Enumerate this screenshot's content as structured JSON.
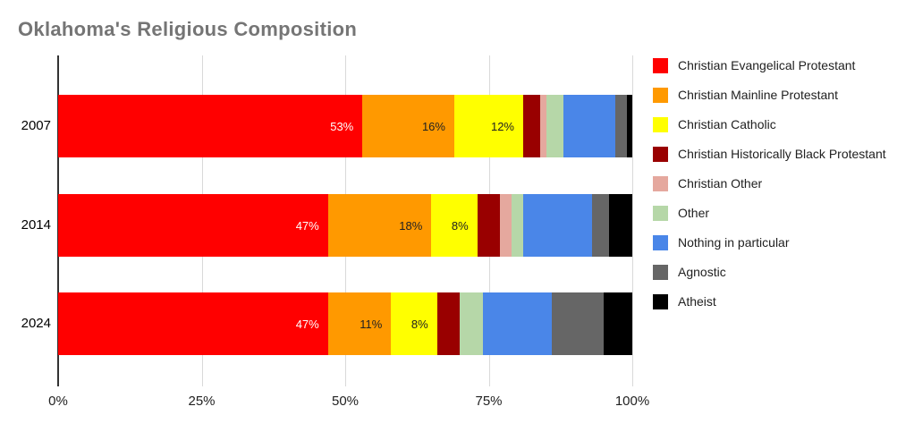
{
  "chart_data": {
    "type": "bar",
    "orientation": "horizontal",
    "stacked": true,
    "title": "Oklahoma's Religious Composition",
    "categories": [
      "2007",
      "2014",
      "2024"
    ],
    "series": [
      {
        "name": "Christian Evangelical Protestant",
        "color": "#FF0000",
        "label_color": "#FFFFFF",
        "values": [
          53,
          47,
          47
        ]
      },
      {
        "name": "Christian Mainline Protestant",
        "color": "#FF9900",
        "label_color": "#212121",
        "values": [
          16,
          18,
          11
        ]
      },
      {
        "name": "Christian Catholic",
        "color": "#FFFF00",
        "label_color": "#212121",
        "values": [
          12,
          8,
          8
        ]
      },
      {
        "name": "Christian Historically Black Protestant",
        "color": "#990000",
        "label_color": "#FFFFFF",
        "values": [
          3,
          4,
          4
        ]
      },
      {
        "name": "Christian Other",
        "color": "#E5A89E",
        "label_color": "#212121",
        "values": [
          1,
          2,
          0
        ]
      },
      {
        "name": "Other",
        "color": "#B6D7A8",
        "label_color": "#212121",
        "values": [
          3,
          2,
          4
        ]
      },
      {
        "name": "Nothing in particular",
        "color": "#4A86E8",
        "label_color": "#FFFFFF",
        "values": [
          9,
          12,
          12
        ]
      },
      {
        "name": "Agnostic",
        "color": "#666666",
        "label_color": "#FFFFFF",
        "values": [
          2,
          3,
          9
        ]
      },
      {
        "name": "Atheist",
        "color": "#000000",
        "label_color": "#FFFFFF",
        "values": [
          1,
          4,
          5
        ]
      }
    ],
    "bar_labels": [
      [
        "53%",
        "16%",
        "12%",
        null,
        null,
        null,
        null,
        null,
        null
      ],
      [
        "47%",
        "18%",
        "8%",
        null,
        null,
        null,
        null,
        null,
        null
      ],
      [
        "47%",
        "11%",
        "8%",
        null,
        null,
        null,
        null,
        null,
        null
      ]
    ],
    "x_ticks": [
      "0%",
      "25%",
      "50%",
      "75%",
      "100%"
    ],
    "xlim": [
      0,
      100
    ],
    "grid": true,
    "legend_position": "right",
    "colors": {
      "background": "#FFFFFF",
      "title": "#757575",
      "axis_line": "#333333",
      "gridline": "#D9D9D9"
    }
  }
}
